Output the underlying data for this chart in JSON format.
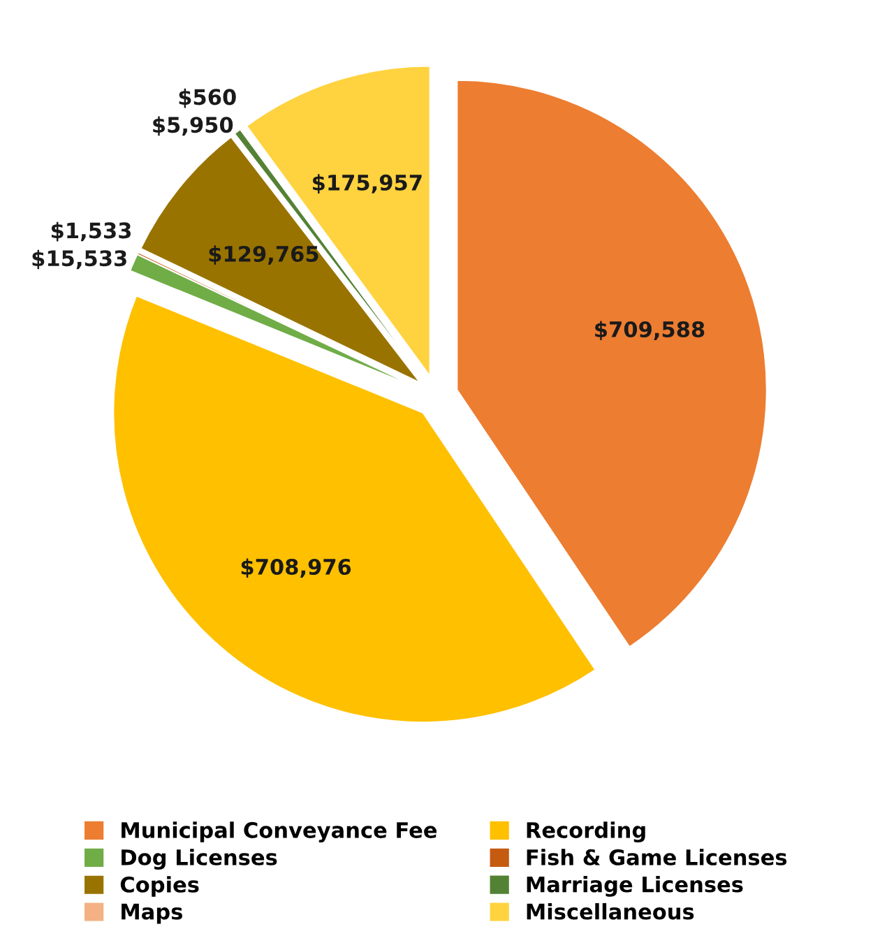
{
  "chart_data": {
    "type": "pie",
    "categories": [
      "Municipal Conveyance Fee",
      "Recording",
      "Dog Licenses",
      "Fish & Game Licenses",
      "Copies",
      "Marriage Licenses",
      "Maps",
      "Miscellaneous"
    ],
    "values": [
      709588,
      708976,
      15533,
      1533,
      129765,
      5950,
      560,
      175957
    ],
    "value_labels": [
      "$709,588",
      "$708,976",
      "$15,533",
      "$1,533",
      "$129,765",
      "$5,950",
      "$560",
      "$175,957"
    ],
    "colors": [
      "#ed7d31",
      "#ffc000",
      "#70ad47",
      "#c55a11",
      "#997300",
      "#548235",
      "#f4b183",
      "#ffd23f"
    ],
    "legend": "bottom"
  }
}
